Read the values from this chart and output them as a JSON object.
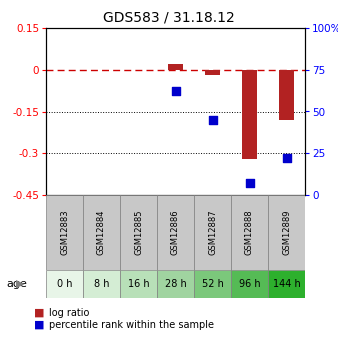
{
  "title": "GDS583 / 31.18.12",
  "samples": [
    "GSM12883",
    "GSM12884",
    "GSM12885",
    "GSM12886",
    "GSM12887",
    "GSM12888",
    "GSM12889"
  ],
  "ages": [
    "0 h",
    "8 h",
    "16 h",
    "28 h",
    "52 h",
    "96 h",
    "144 h"
  ],
  "log_ratio": [
    null,
    null,
    null,
    0.022,
    -0.018,
    -0.32,
    -0.18
  ],
  "percentile_rank": [
    null,
    null,
    null,
    62,
    45,
    7,
    22
  ],
  "ylim_left": [
    -0.45,
    0.15
  ],
  "ylim_right": [
    0,
    100
  ],
  "yticks_left": [
    0.15,
    0,
    -0.15,
    -0.3,
    -0.45
  ],
  "yticks_right": [
    100,
    75,
    50,
    25,
    0
  ],
  "bar_color": "#b22222",
  "dot_color": "#0000cc",
  "dashed_line_color": "#cc0000",
  "grid_color": "#000000",
  "background_color": "#ffffff",
  "age_colors": [
    "#e8f5e8",
    "#d4edd4",
    "#b8e0b8",
    "#a0d4a0",
    "#7bc87b",
    "#55bb55",
    "#2db02d"
  ],
  "sample_box_color": "#c8c8c8",
  "title_fontsize": 10,
  "tick_fontsize": 7.5,
  "label_fontsize": 7.5
}
